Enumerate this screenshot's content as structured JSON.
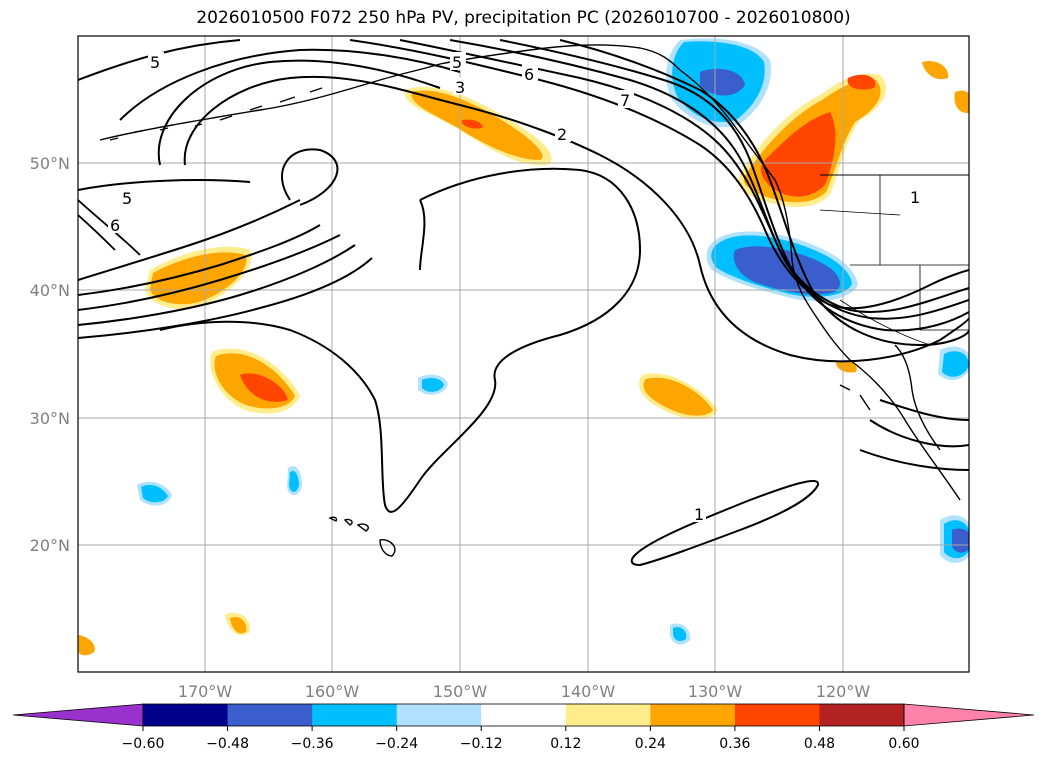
{
  "title": "2026010500 F072 250 hPa PV, precipitation PC (2026010700 - 2026010800)",
  "lat_labels": [
    "50°N",
    "40°N",
    "30°N",
    "20°N"
  ],
  "lon_labels": [
    "170°W",
    "160°W",
    "150°W",
    "140°W",
    "130°W",
    "120°W"
  ],
  "contour_labels": [
    "5",
    "5",
    "6",
    "7",
    "3",
    "2",
    "5",
    "6",
    "1",
    "1"
  ],
  "colorbar": {
    "ticks": [
      "−0.60",
      "−0.48",
      "−0.36",
      "−0.24",
      "−0.12",
      "0.12",
      "0.24",
      "0.36",
      "0.48",
      "0.60"
    ],
    "colors": [
      "#9932cc",
      "#00008b",
      "#3a5fcd",
      "#00bfff",
      "#b0e2ff",
      "#ffffff",
      "#ffec8b",
      "#ffa500",
      "#ff4500",
      "#b22222",
      "#ff82ab"
    ]
  }
}
